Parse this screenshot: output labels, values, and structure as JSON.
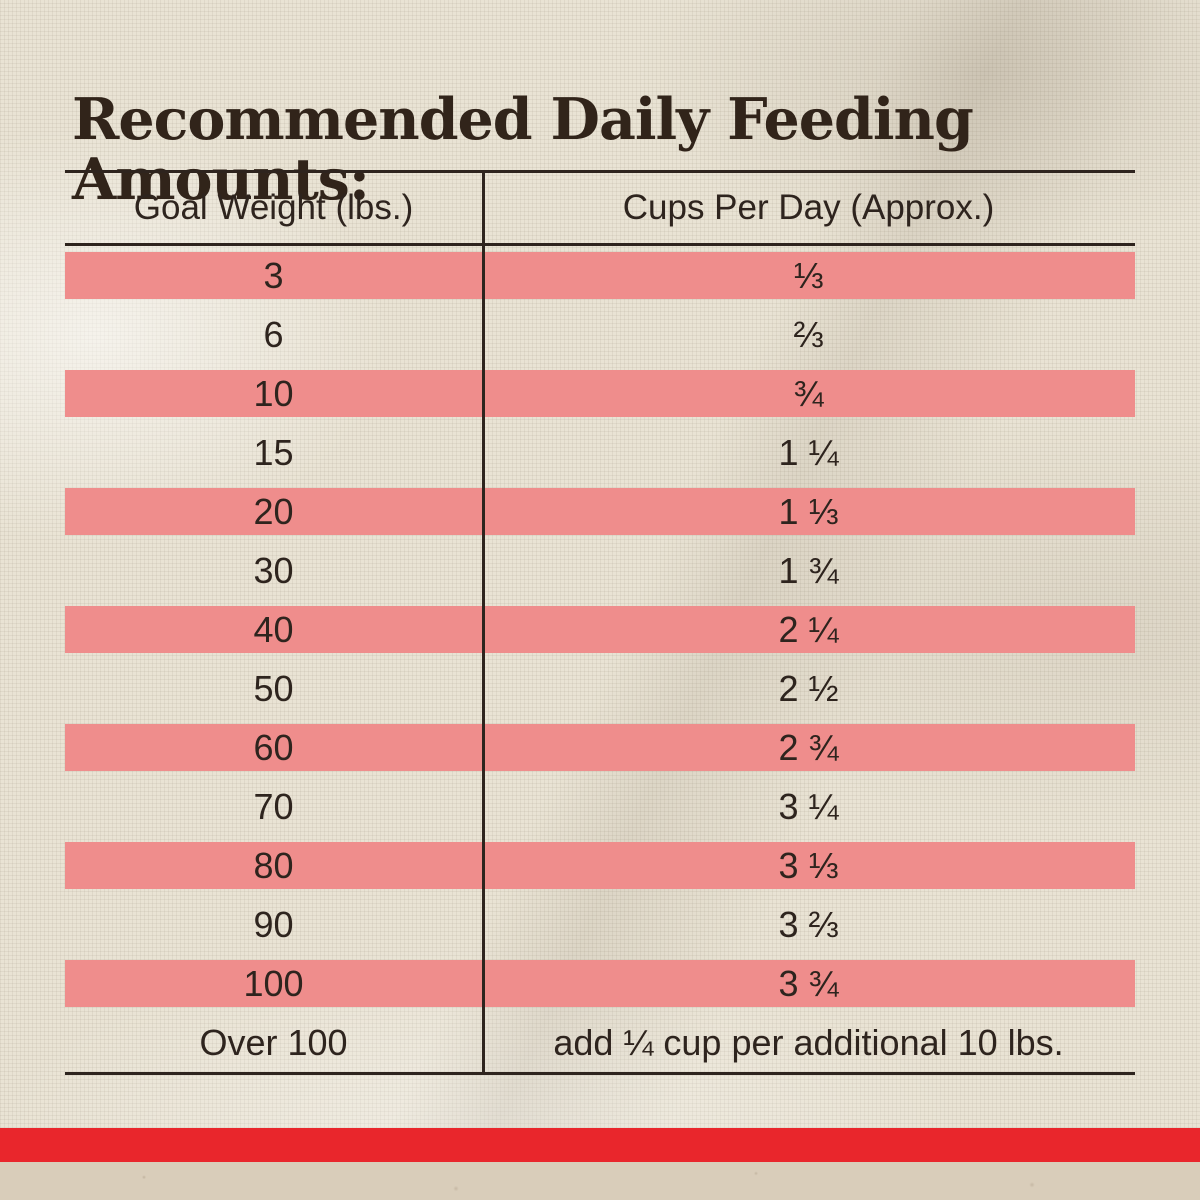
{
  "title": "Recommended Daily Feeding Amounts:",
  "table": {
    "columns": [
      "Goal Weight (lbs.)",
      "Cups Per Day (Approx.)"
    ],
    "rows": [
      {
        "weight": "3",
        "cups": "⅓"
      },
      {
        "weight": "6",
        "cups": "⅔"
      },
      {
        "weight": "10",
        "cups": "¾"
      },
      {
        "weight": "15",
        "cups": "1 ¼"
      },
      {
        "weight": "20",
        "cups": "1 ⅓"
      },
      {
        "weight": "30",
        "cups": "1 ¾"
      },
      {
        "weight": "40",
        "cups": "2 ¼"
      },
      {
        "weight": "50",
        "cups": "2 ½"
      },
      {
        "weight": "60",
        "cups": "2 ¾"
      },
      {
        "weight": "70",
        "cups": "3 ¼"
      },
      {
        "weight": "80",
        "cups": "3 ⅓"
      },
      {
        "weight": "90",
        "cups": "3 ⅔"
      },
      {
        "weight": "100",
        "cups": "3 ¾"
      },
      {
        "weight": "Over 100",
        "cups": "add ¼ cup per additional 10 lbs."
      }
    ]
  },
  "chart_data": {
    "type": "table",
    "title": "Recommended Daily Feeding Amounts:",
    "columns": [
      "Goal Weight (lbs.)",
      "Cups Per Day (Approx.)"
    ],
    "rows": [
      [
        "3",
        "⅓"
      ],
      [
        "6",
        "⅔"
      ],
      [
        "10",
        "¾"
      ],
      [
        "15",
        "1 ¼"
      ],
      [
        "20",
        "1 ⅓"
      ],
      [
        "30",
        "1 ¾"
      ],
      [
        "40",
        "2 ¼"
      ],
      [
        "50",
        "2 ½"
      ],
      [
        "60",
        "2 ¾"
      ],
      [
        "70",
        "3 ¼"
      ],
      [
        "80",
        "3 ⅓"
      ],
      [
        "90",
        "3 ⅔"
      ],
      [
        "100",
        "3 ¾"
      ],
      [
        "Over 100",
        "add ¼ cup per additional 10 lbs."
      ]
    ],
    "layout": {
      "striped": true,
      "stripe_color": "#ef8d8c",
      "first_data_row_striped": true
    }
  },
  "colors": {
    "stripe": "#ef8d8c",
    "accent_bar": "#e9262c",
    "text": "#2e241e",
    "background": "#e9e3d4",
    "bottom_strip": "#d9cdba"
  }
}
